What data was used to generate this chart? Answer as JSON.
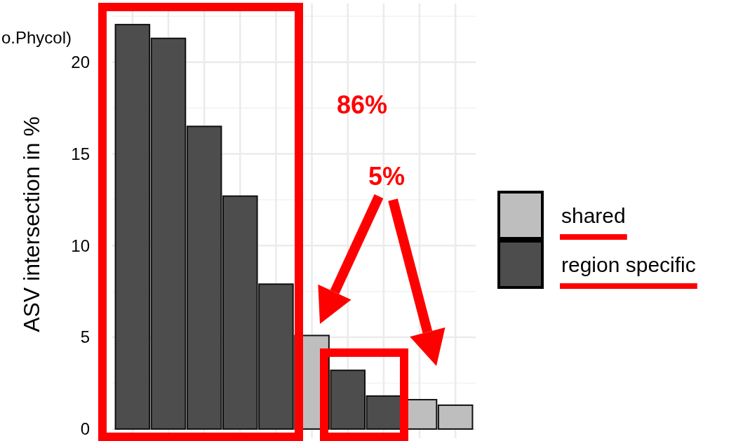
{
  "chart_data": {
    "type": "bar",
    "title": "o.Phycol)",
    "ylabel": "ASV intersection in %",
    "categories": [
      null,
      null,
      null,
      null,
      null,
      null,
      null,
      null,
      null,
      null
    ],
    "series": [
      {
        "name": "shared",
        "color": "#bebebe",
        "values": [
          null,
          null,
          null,
          null,
          null,
          5.1,
          null,
          null,
          1.6,
          1.3
        ]
      },
      {
        "name": "region specific",
        "color": "#4d4d4d",
        "values": [
          22.05,
          21.3,
          16.5,
          12.7,
          7.9,
          null,
          3.2,
          1.8,
          null,
          null
        ]
      }
    ],
    "ylim": [
      -0.5,
      23.2
    ],
    "yticks": [
      0,
      5,
      10,
      15,
      20
    ],
    "grid": true,
    "legend": "right",
    "annotations": [
      "86%",
      "5%"
    ]
  }
}
